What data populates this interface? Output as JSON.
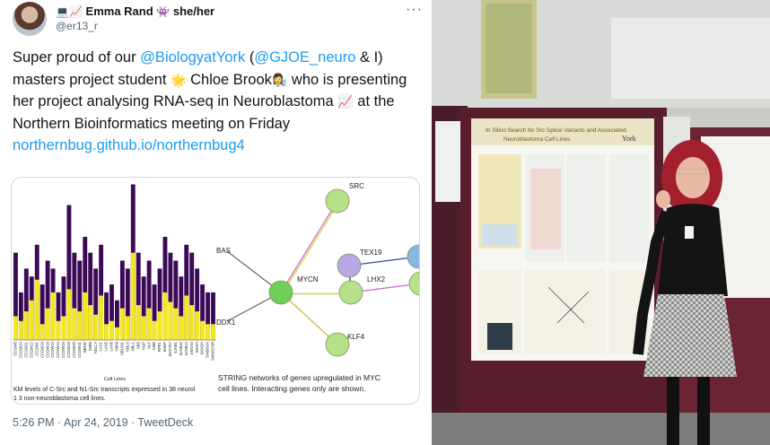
{
  "tweet": {
    "display_name": "Emma Rand",
    "name_emojis": [
      "💻",
      "📈"
    ],
    "pronoun_emoji": "👾",
    "pronouns": "she/her",
    "handle": "@er13_r",
    "more_icon": "more-icon",
    "text": {
      "part1": "Super proud of our ",
      "mention1": "@BiologyatYork",
      "part2": " (",
      "mention2": "@GJOE_neuro",
      "part3": " & I) masters project student ",
      "emoji1": "🌟",
      "part4": " Chloe Brook",
      "emoji2": "👩‍🔬",
      "part5": " who is presenting her project analysing RNA-seq in Neuroblastoma ",
      "emoji3": "📈",
      "part6": " at the Northern Bioinformatics meeting on Friday",
      "link": "northernbug.github.io/northernbug4"
    },
    "timestamp": "5:26 PM · Apr 24, 2019 · TweetDeck"
  },
  "media": {
    "bar_chart": {
      "cell_lines": [
        "CCGW5",
        "CCGW10",
        "CCGW11",
        "CCGW12",
        "CCGW1",
        "CCGW16",
        "CCGW18",
        "CCGW13",
        "CCGW14",
        "CCGW15",
        "CCGW19",
        "CCGW20",
        "CCGW21",
        "IMR32",
        "IMR5",
        "KELLY",
        "LAN1",
        "LAN5",
        "LAN6",
        "NB69",
        "NB1691",
        "NBLS",
        "NBL1",
        "NB5",
        "NGP",
        "NLF",
        "NMB",
        "RPE1",
        "SHEP",
        "SHSY5Y",
        "SJNB1",
        "SJNB10",
        "SJNB12",
        "SKNAS",
        "SKNFI",
        "SKNSH",
        "SMSKAN",
        "SMSKCNR"
      ],
      "xlabel": "Cell Lines",
      "caption": "KM levels of C-Src and N1-Src transcripts expressed in 38 neurol",
      "caption2": "1 3 non-neuroblastoma cell lines."
    },
    "network": {
      "nodes": [
        "SRC",
        "TEX19",
        "BAS",
        "MYCN",
        "LHX2",
        "DDX1",
        "KLF4"
      ],
      "caption": "STRING networks of genes upregulated in MYC",
      "caption2": "cell lines. Interacting genes only are shown."
    }
  },
  "colors": {
    "bar_dark": "#3a0a56",
    "bar_yellow": "#f3e81d",
    "link_blue": "#1d9bf0"
  },
  "photo": {
    "poster_title": "In Silico Search for Src Splice Variants and Associated",
    "poster_subtitle": "Neuroblastoma Cell Lines",
    "poster_logo": "York"
  }
}
